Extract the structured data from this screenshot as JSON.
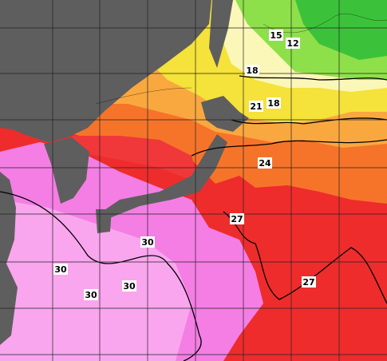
{
  "contour_labels": [
    15,
    12,
    18,
    21,
    18,
    24,
    27,
    27,
    30,
    30,
    30,
    30
  ]
}
